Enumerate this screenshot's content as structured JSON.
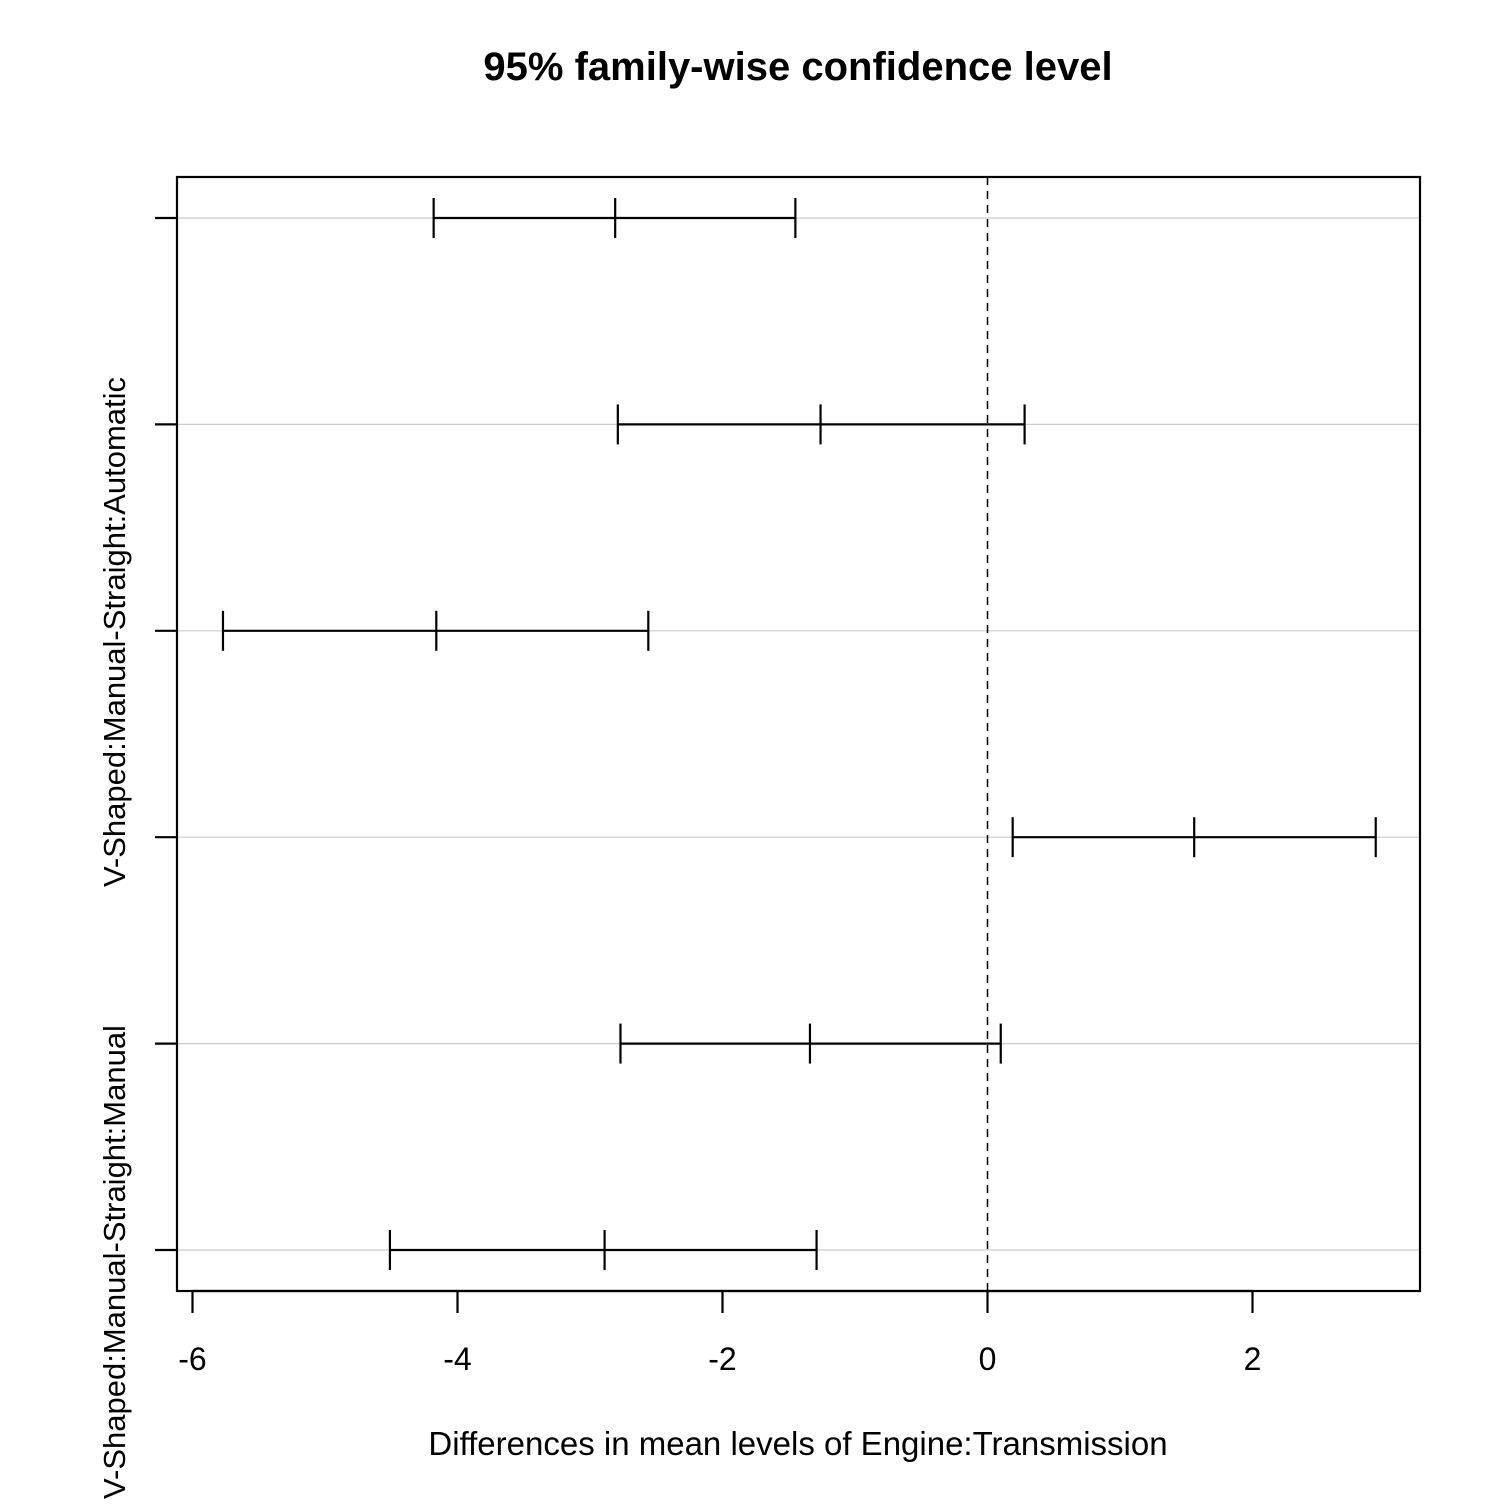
{
  "chart_data": {
    "type": "interval",
    "title": "95% family-wise confidence level",
    "xlabel": "Differences in mean levels of Engine:Transmission",
    "xlim": [
      -6.0,
      3.2
    ],
    "x_ticks": [
      -6,
      -4,
      -2,
      0,
      2
    ],
    "x_tick_labels": [
      "-6",
      "-4",
      "-2",
      "0",
      "2"
    ],
    "grid": "horizontal",
    "reference_line_x": 0,
    "y_labels_visible": [
      "V-Shaped:Manual-Straight:Automatic",
      "V-Shaped:Manual-Straight:Manual"
    ],
    "intervals": [
      {
        "lwr": -4.18,
        "diff": -2.81,
        "upr": -1.45
      },
      {
        "lwr": -2.79,
        "diff": -1.26,
        "upr": 0.28
      },
      {
        "lwr": -5.77,
        "diff": -4.16,
        "upr": -2.56
      },
      {
        "lwr": 0.19,
        "diff": 1.56,
        "upr": 2.93
      },
      {
        "lwr": -2.77,
        "diff": -1.34,
        "upr": 0.1
      },
      {
        "lwr": -4.51,
        "diff": -2.89,
        "upr": -1.29
      }
    ]
  },
  "colors": {
    "line": "#000000",
    "grid": "#cccccc",
    "background": "#ffffff"
  }
}
